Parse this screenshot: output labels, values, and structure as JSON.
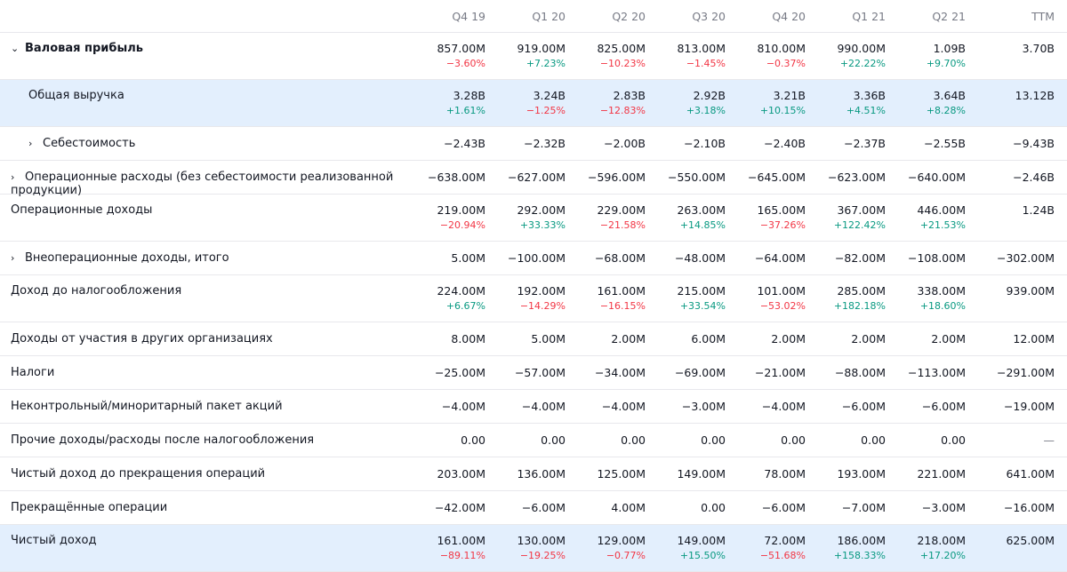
{
  "columns": [
    "Q4 19",
    "Q1 20",
    "Q2 20",
    "Q3 20",
    "Q4 20",
    "Q1 21",
    "Q2 21",
    "TTM"
  ],
  "rows": [
    {
      "label": "Валовая прибыль",
      "values": [
        "857.00M",
        "919.00M",
        "825.00M",
        "813.00M",
        "810.00M",
        "990.00M",
        "1.09B",
        "3.70B"
      ],
      "changes": [
        "−3.60%",
        "+7.23%",
        "−10.23%",
        "−1.45%",
        "−0.37%",
        "+22.22%",
        "+9.70%",
        ""
      ]
    },
    {
      "label": "Общая выручка",
      "values": [
        "3.28B",
        "3.24B",
        "2.83B",
        "2.92B",
        "3.21B",
        "3.36B",
        "3.64B",
        "13.12B"
      ],
      "changes": [
        "+1.61%",
        "−1.25%",
        "−12.83%",
        "+3.18%",
        "+10.15%",
        "+4.51%",
        "+8.28%",
        ""
      ]
    },
    {
      "label": "Себестоимость",
      "values": [
        "−2.43B",
        "−2.32B",
        "−2.00B",
        "−2.10B",
        "−2.40B",
        "−2.37B",
        "−2.55B",
        "−9.43B"
      ]
    },
    {
      "label": "Операционные расходы (без себестоимости реализованной продукции)",
      "values": [
        "−638.00M",
        "−627.00M",
        "−596.00M",
        "−550.00M",
        "−645.00M",
        "−623.00M",
        "−640.00M",
        "−2.46B"
      ]
    },
    {
      "label": "Операционные доходы",
      "values": [
        "219.00M",
        "292.00M",
        "229.00M",
        "263.00M",
        "165.00M",
        "367.00M",
        "446.00M",
        "1.24B"
      ],
      "changes": [
        "−20.94%",
        "+33.33%",
        "−21.58%",
        "+14.85%",
        "−37.26%",
        "+122.42%",
        "+21.53%",
        ""
      ]
    },
    {
      "label": "Внеоперационные доходы, итого",
      "values": [
        "5.00M",
        "−100.00M",
        "−68.00M",
        "−48.00M",
        "−64.00M",
        "−82.00M",
        "−108.00M",
        "−302.00M"
      ]
    },
    {
      "label": "Доход до налогообложения",
      "values": [
        "224.00M",
        "192.00M",
        "161.00M",
        "215.00M",
        "101.00M",
        "285.00M",
        "338.00M",
        "939.00M"
      ],
      "changes": [
        "+6.67%",
        "−14.29%",
        "−16.15%",
        "+33.54%",
        "−53.02%",
        "+182.18%",
        "+18.60%",
        ""
      ]
    },
    {
      "label": "Доходы от участия в других организациях",
      "values": [
        "8.00M",
        "5.00M",
        "2.00M",
        "6.00M",
        "2.00M",
        "2.00M",
        "2.00M",
        "12.00M"
      ]
    },
    {
      "label": "Налоги",
      "values": [
        "−25.00M",
        "−57.00M",
        "−34.00M",
        "−69.00M",
        "−21.00M",
        "−88.00M",
        "−113.00M",
        "−291.00M"
      ]
    },
    {
      "label": "Неконтрольный/миноритарный пакет акций",
      "values": [
        "−4.00M",
        "−4.00M",
        "−4.00M",
        "−3.00M",
        "−4.00M",
        "−6.00M",
        "−6.00M",
        "−19.00M"
      ]
    },
    {
      "label": "Прочие доходы/расходы после налогообложения",
      "values": [
        "0.00",
        "0.00",
        "0.00",
        "0.00",
        "0.00",
        "0.00",
        "0.00",
        "—"
      ]
    },
    {
      "label": "Чистый доход до прекращения операций",
      "values": [
        "203.00M",
        "136.00M",
        "125.00M",
        "149.00M",
        "78.00M",
        "193.00M",
        "221.00M",
        "641.00M"
      ]
    },
    {
      "label": "Прекращённые операции",
      "values": [
        "−42.00M",
        "−6.00M",
        "4.00M",
        "0.00",
        "−6.00M",
        "−7.00M",
        "−3.00M",
        "−16.00M"
      ]
    },
    {
      "label": "Чистый доход",
      "values": [
        "161.00M",
        "130.00M",
        "129.00M",
        "149.00M",
        "72.00M",
        "186.00M",
        "218.00M",
        "625.00M"
      ],
      "changes": [
        "−89.11%",
        "−19.25%",
        "−0.77%",
        "+15.50%",
        "−51.68%",
        "+158.33%",
        "+17.20%",
        ""
      ]
    }
  ],
  "colors": {
    "negative": "#f23645",
    "positive": "#089981",
    "highlight": "#e3effd"
  }
}
